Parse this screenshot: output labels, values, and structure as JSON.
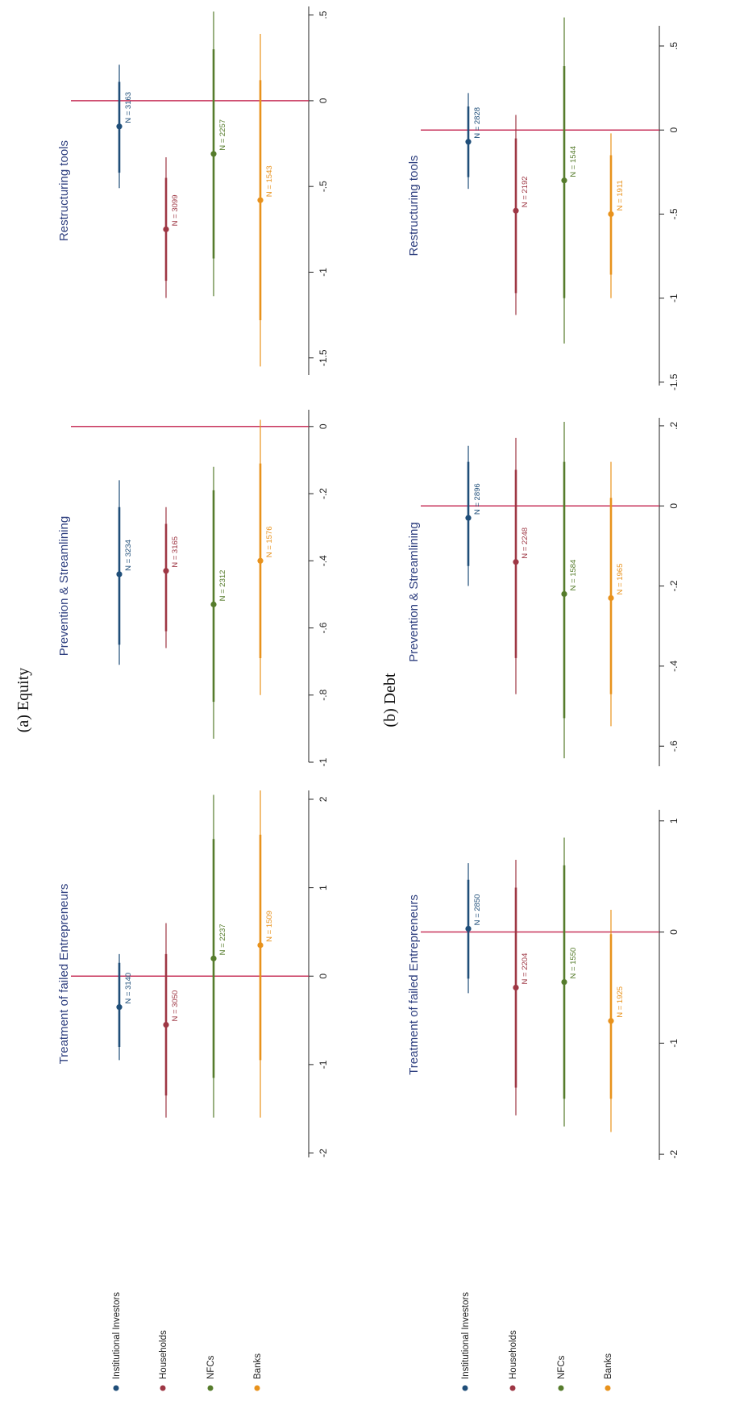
{
  "colors": {
    "Institutional Investors": "#1f4e79",
    "Households": "#9e3744",
    "NFCs": "#567c2c",
    "Banks": "#e8921c",
    "zero_line": "#c8355c",
    "title": "#2e3f7f",
    "axis": "#222222"
  },
  "legend": [
    {
      "name": "Institutional Investors",
      "color_key": "Institutional Investors"
    },
    {
      "name": "Households",
      "color_key": "Households"
    },
    {
      "name": "NFCs",
      "color_key": "NFCs"
    },
    {
      "name": "Banks",
      "color_key": "Banks"
    }
  ],
  "chart_data": [
    {
      "type": "coefficient_plot",
      "group": "(a) Equity",
      "title": "Restructuring tools",
      "xlim": [
        -1.6,
        0.55
      ],
      "ticks": [
        0.5,
        0,
        -0.5,
        -1,
        -1.5
      ],
      "tick_labels": [
        ".5",
        "0",
        "-.5",
        "-1",
        "-1.5"
      ],
      "series": [
        {
          "name": "Institutional Investors",
          "estimate": -0.15,
          "ci95": [
            -0.51,
            0.21
          ],
          "ci90": [
            -0.42,
            0.11
          ],
          "n_label": "N = 3163"
        },
        {
          "name": "Households",
          "estimate": -0.75,
          "ci95": [
            -1.15,
            -0.33
          ],
          "ci90": [
            -1.05,
            -0.45
          ],
          "n_label": "N = 3099"
        },
        {
          "name": "NFCs",
          "estimate": -0.31,
          "ci95": [
            -1.14,
            0.52
          ],
          "ci90": [
            -0.92,
            0.3
          ],
          "n_label": "N = 2257"
        },
        {
          "name": "Banks",
          "estimate": -0.58,
          "ci95": [
            -1.55,
            0.39
          ],
          "ci90": [
            -1.28,
            0.12
          ],
          "n_label": "N = 1543"
        }
      ]
    },
    {
      "type": "coefficient_plot",
      "group": "(a) Equity",
      "title": "Prevention & Streamlining",
      "xlim": [
        -1.0,
        0.05
      ],
      "ticks": [
        0,
        -0.2,
        -0.4,
        -0.6,
        -0.8,
        -1
      ],
      "tick_labels": [
        "0",
        "-.2",
        "-.4",
        "-.6",
        "-.8",
        "-1"
      ],
      "series": [
        {
          "name": "Institutional Investors",
          "estimate": -0.44,
          "ci95": [
            -0.71,
            -0.16
          ],
          "ci90": [
            -0.65,
            -0.24
          ],
          "n_label": "N = 3234"
        },
        {
          "name": "Households",
          "estimate": -0.43,
          "ci95": [
            -0.66,
            -0.24
          ],
          "ci90": [
            -0.61,
            -0.29
          ],
          "n_label": "N = 3165"
        },
        {
          "name": "NFCs",
          "estimate": -0.53,
          "ci95": [
            -0.93,
            -0.12
          ],
          "ci90": [
            -0.82,
            -0.19
          ],
          "n_label": "N = 2312"
        },
        {
          "name": "Banks",
          "estimate": -0.4,
          "ci95": [
            -0.8,
            0.02
          ],
          "ci90": [
            -0.69,
            -0.11
          ],
          "n_label": "N = 1576"
        }
      ]
    },
    {
      "type": "coefficient_plot",
      "group": "(a) Equity",
      "title": "Treatment of failed Entrepreneurs",
      "xlim": [
        -2.05,
        2.1
      ],
      "ticks": [
        2,
        1,
        0,
        -1,
        -2
      ],
      "tick_labels": [
        "2",
        "1",
        "0",
        "-1",
        "-2"
      ],
      "series": [
        {
          "name": "Institutional Investors",
          "estimate": -0.35,
          "ci95": [
            -0.95,
            0.25
          ],
          "ci90": [
            -0.8,
            0.15
          ],
          "n_label": "N = 3140"
        },
        {
          "name": "Households",
          "estimate": -0.55,
          "ci95": [
            -1.6,
            0.6
          ],
          "ci90": [
            -1.35,
            0.25
          ],
          "n_label": "N = 3050"
        },
        {
          "name": "NFCs",
          "estimate": 0.2,
          "ci95": [
            -1.6,
            2.05
          ],
          "ci90": [
            -1.15,
            1.55
          ],
          "n_label": "N = 2237"
        },
        {
          "name": "Banks",
          "estimate": 0.35,
          "ci95": [
            -1.6,
            2.1
          ],
          "ci90": [
            -0.95,
            1.6
          ],
          "n_label": "N = 1509"
        }
      ]
    },
    {
      "type": "coefficient_plot",
      "group": "(b) Debt",
      "title": "Restructuring tools",
      "xlim": [
        -1.52,
        0.62
      ],
      "ticks": [
        0.5,
        0,
        -0.5,
        -1,
        -1.5
      ],
      "tick_labels": [
        ".5",
        "0",
        "-.5",
        "-1",
        "-1.5"
      ],
      "series": [
        {
          "name": "Institutional Investors",
          "estimate": -0.07,
          "ci95": [
            -0.35,
            0.22
          ],
          "ci90": [
            -0.28,
            0.14
          ],
          "n_label": "N = 2828"
        },
        {
          "name": "Households",
          "estimate": -0.48,
          "ci95": [
            -1.1,
            0.09
          ],
          "ci90": [
            -0.97,
            -0.05
          ],
          "n_label": "N = 2192"
        },
        {
          "name": "NFCs",
          "estimate": -0.3,
          "ci95": [
            -1.27,
            0.67
          ],
          "ci90": [
            -1.0,
            0.38
          ],
          "n_label": "N = 1544"
        },
        {
          "name": "Banks",
          "estimate": -0.5,
          "ci95": [
            -1.0,
            -0.02
          ],
          "ci90": [
            -0.86,
            -0.15
          ],
          "n_label": "N = 1911"
        }
      ]
    },
    {
      "type": "coefficient_plot",
      "group": "(b) Debt",
      "title": "Prevention & Streamlining",
      "xlim": [
        -0.65,
        0.22
      ],
      "ticks": [
        0.2,
        0,
        -0.2,
        -0.4,
        -0.6
      ],
      "tick_labels": [
        ".2",
        "0",
        "-.2",
        "-.4",
        "-.6"
      ],
      "series": [
        {
          "name": "Institutional Investors",
          "estimate": -0.03,
          "ci95": [
            -0.2,
            0.15
          ],
          "ci90": [
            -0.15,
            0.11
          ],
          "n_label": "N = 2896"
        },
        {
          "name": "Households",
          "estimate": -0.14,
          "ci95": [
            -0.47,
            0.17
          ],
          "ci90": [
            -0.38,
            0.09
          ],
          "n_label": "N = 2248"
        },
        {
          "name": "NFCs",
          "estimate": -0.22,
          "ci95": [
            -0.63,
            0.21
          ],
          "ci90": [
            -0.53,
            0.11
          ],
          "n_label": "N = 1584"
        },
        {
          "name": "Banks",
          "estimate": -0.23,
          "ci95": [
            -0.55,
            0.11
          ],
          "ci90": [
            -0.47,
            0.02
          ],
          "n_label": "N = 1965"
        }
      ]
    },
    {
      "type": "coefficient_plot",
      "group": "(b) Debt",
      "title": "Treatment of failed Entrepreneurs",
      "xlim": [
        -2.05,
        1.1
      ],
      "ticks": [
        1,
        0,
        -1,
        -2
      ],
      "tick_labels": [
        "1",
        "0",
        "-1",
        "-2"
      ],
      "series": [
        {
          "name": "Institutional Investors",
          "estimate": 0.03,
          "ci95": [
            -0.55,
            0.62
          ],
          "ci90": [
            -0.42,
            0.47
          ],
          "n_label": "N = 2850"
        },
        {
          "name": "Households",
          "estimate": -0.5,
          "ci95": [
            -1.65,
            0.65
          ],
          "ci90": [
            -1.4,
            0.4
          ],
          "n_label": "N = 2204"
        },
        {
          "name": "NFCs",
          "estimate": -0.45,
          "ci95": [
            -1.75,
            0.85
          ],
          "ci90": [
            -1.5,
            0.6
          ],
          "n_label": "N = 1550"
        },
        {
          "name": "Banks",
          "estimate": -0.8,
          "ci95": [
            -1.8,
            0.2
          ],
          "ci90": [
            -1.5,
            -0.02
          ],
          "n_label": "N = 1925"
        }
      ]
    }
  ],
  "captions": {
    "equity": "(a) Equity",
    "debt": "(b) Debt"
  }
}
